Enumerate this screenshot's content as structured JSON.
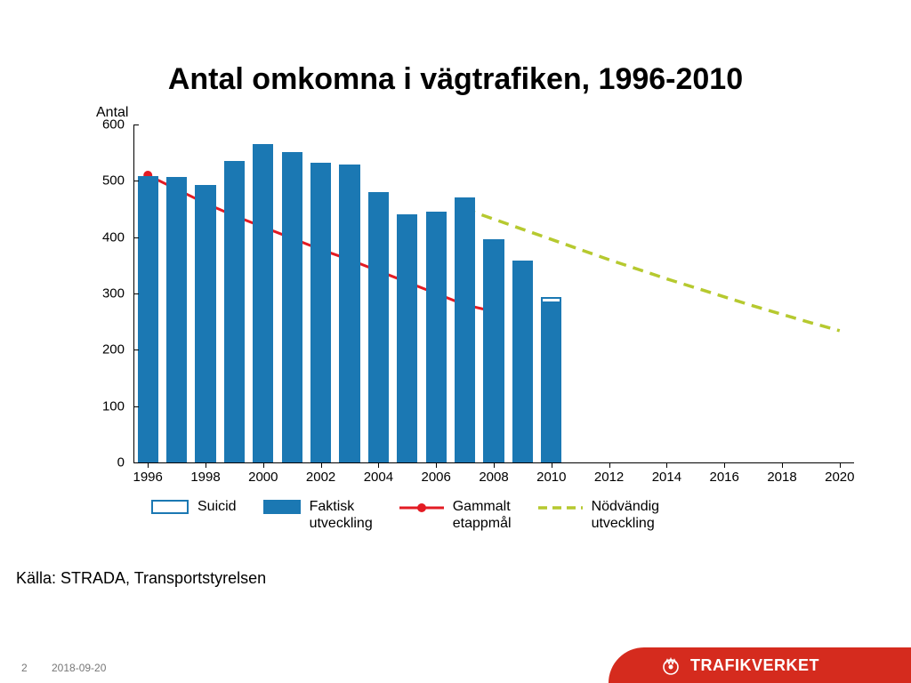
{
  "title": "Antal omkomna i vägtrafiken, 1996-2010",
  "ylabel_text": "Antal",
  "source": "Källa: STRADA, Transportstyrelsen",
  "page_number": "2",
  "date": "2018-09-20",
  "brand": "TRAFIKVERKET",
  "chart": {
    "type": "bar+line",
    "ylim": [
      0,
      600
    ],
    "ytick_step": 100,
    "yticks": [
      0,
      100,
      200,
      300,
      400,
      500,
      600
    ],
    "xlim": [
      1995.5,
      2020.5
    ],
    "xticks": [
      1996,
      1998,
      2000,
      2002,
      2004,
      2006,
      2008,
      2010,
      2012,
      2014,
      2016,
      2018,
      2020
    ],
    "bar_color": "#1b78b3",
    "suicid_border_color": "#1b78b3",
    "suicid_fill": "#ffffff",
    "bar_width_years": 0.72,
    "background_color": "#ffffff",
    "axis_color": "#000000",
    "label_fontsize": 15,
    "title_fontsize": 34,
    "bars": [
      {
        "year": 1996,
        "value": 508
      },
      {
        "year": 1997,
        "value": 507
      },
      {
        "year": 1998,
        "value": 492
      },
      {
        "year": 1999,
        "value": 536
      },
      {
        "year": 2000,
        "value": 565
      },
      {
        "year": 2001,
        "value": 551
      },
      {
        "year": 2002,
        "value": 532
      },
      {
        "year": 2003,
        "value": 529
      },
      {
        "year": 2004,
        "value": 480
      },
      {
        "year": 2005,
        "value": 440
      },
      {
        "year": 2006,
        "value": 445
      },
      {
        "year": 2007,
        "value": 471
      },
      {
        "year": 2008,
        "value": 397
      },
      {
        "year": 2009,
        "value": 358
      },
      {
        "year": 2010,
        "value": 282,
        "suicid": 12
      }
    ],
    "line_gammalt": {
      "color": "#e31b23",
      "width": 3,
      "marker_radius": 5,
      "points": [
        {
          "year": 1996,
          "value": 510
        },
        {
          "year": 1997,
          "value": 485
        },
        {
          "year": 1998,
          "value": 460
        },
        {
          "year": 1999,
          "value": 438
        },
        {
          "year": 2000,
          "value": 418
        },
        {
          "year": 2001,
          "value": 398
        },
        {
          "year": 2002,
          "value": 378
        },
        {
          "year": 2003,
          "value": 360
        },
        {
          "year": 2004,
          "value": 340
        },
        {
          "year": 2005,
          "value": 320
        },
        {
          "year": 2006,
          "value": 300
        },
        {
          "year": 2007,
          "value": 280
        },
        {
          "year": 2008,
          "value": 268
        }
      ]
    },
    "line_nodvandig": {
      "color": "#b6c92f",
      "width": 3.5,
      "dash": "12,8",
      "points": [
        {
          "year": 2007,
          "value": 450
        },
        {
          "year": 2008,
          "value": 432
        },
        {
          "year": 2009,
          "value": 414
        },
        {
          "year": 2010,
          "value": 396
        },
        {
          "year": 2011,
          "value": 378
        },
        {
          "year": 2012,
          "value": 360
        },
        {
          "year": 2013,
          "value": 343
        },
        {
          "year": 2014,
          "value": 326
        },
        {
          "year": 2015,
          "value": 310
        },
        {
          "year": 2016,
          "value": 294
        },
        {
          "year": 2017,
          "value": 278
        },
        {
          "year": 2018,
          "value": 263
        },
        {
          "year": 2019,
          "value": 248
        },
        {
          "year": 2020,
          "value": 234
        }
      ]
    }
  },
  "legend": {
    "suicid": "Suicid",
    "faktisk": "Faktisk\nutveckling",
    "gammalt": "Gammalt\netappmål",
    "nodvandig": "Nödvändig\nutveckling"
  },
  "colors": {
    "brand_red": "#d52b1e"
  }
}
